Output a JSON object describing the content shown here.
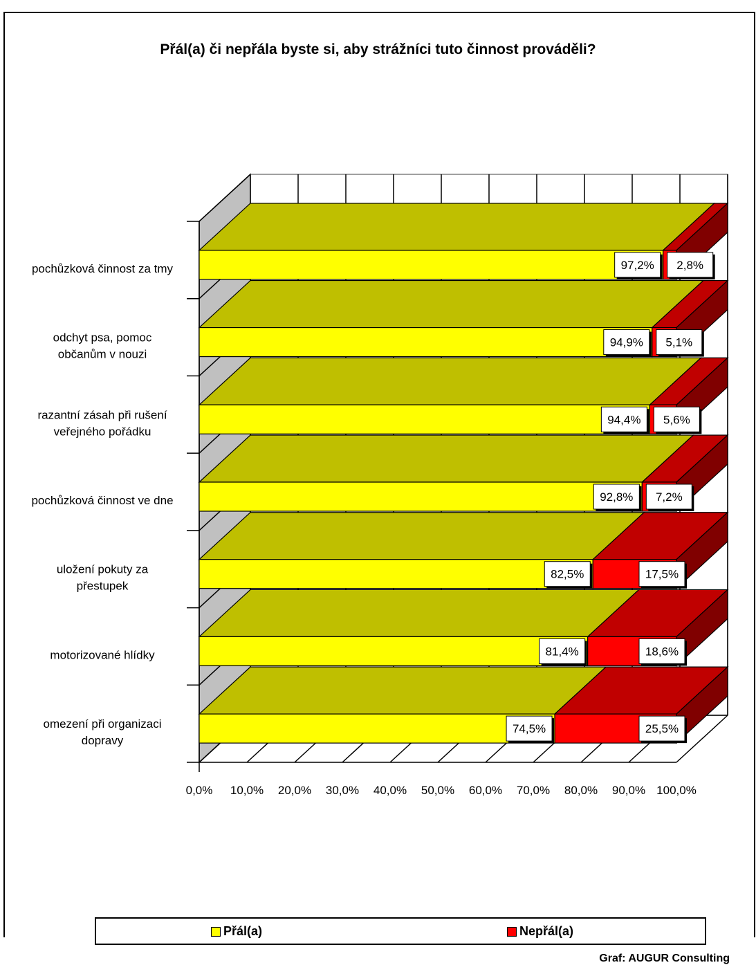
{
  "colors": {
    "yes_front": "#FFFF00",
    "yes_top": "#BFBF00",
    "no_front": "#FF0000",
    "no_top": "#C00000",
    "no_side": "#800000",
    "wall": "#C0C0C0"
  },
  "chart_data": {
    "type": "bar",
    "orientation": "horizontal",
    "stacked": true,
    "three_d": true,
    "title": "Přál(a) či nepřála byste si, aby strážníci tuto činnost prováděli?",
    "categories": [
      [
        "pochůzková činnost za tmy"
      ],
      [
        "odchyt psa, pomoc",
        "občanům v nouzi"
      ],
      [
        "razantní zásah při rušení",
        "veřejného pořádku"
      ],
      [
        "pochůzková činnost ve dne"
      ],
      [
        "uložení pokuty za",
        "přestupek"
      ],
      [
        "motorizované hlídky"
      ],
      [
        "omezení při organizaci",
        "dopravy"
      ]
    ],
    "series": [
      {
        "name": "Přál(a)",
        "values": [
          97.2,
          94.9,
          94.4,
          92.8,
          82.5,
          81.4,
          74.5
        ],
        "labels": [
          "97,2%",
          "94,9%",
          "94,4%",
          "92,8%",
          "82,5%",
          "81,4%",
          "74,5%"
        ]
      },
      {
        "name": "Nepřál(a)",
        "values": [
          2.8,
          5.1,
          5.6,
          7.2,
          17.5,
          18.6,
          25.5
        ],
        "labels": [
          "2,8%",
          "5,1%",
          "5,6%",
          "7,2%",
          "17,5%",
          "18,6%",
          "25,5%"
        ]
      }
    ],
    "xlim": [
      0,
      100
    ],
    "xticks": [
      "0,0%",
      "10,0%",
      "20,0%",
      "30,0%",
      "40,0%",
      "50,0%",
      "60,0%",
      "70,0%",
      "80,0%",
      "90,0%",
      "100,0%"
    ],
    "grid": true,
    "legend_position": "bottom"
  },
  "source": "Graf: AUGUR Consulting"
}
